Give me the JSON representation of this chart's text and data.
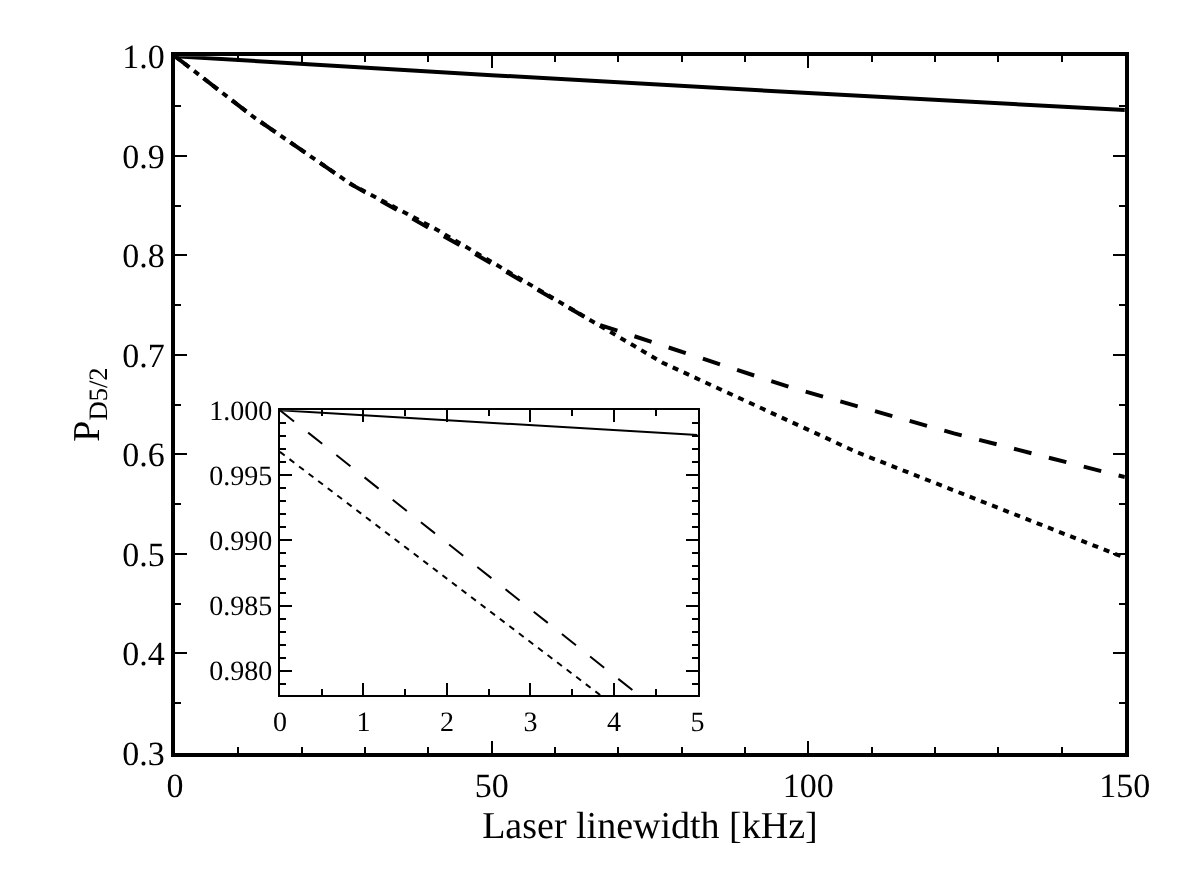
{
  "chart_data": [
    {
      "type": "line",
      "xlabel": "Laser linewidth [kHz]",
      "ylabel": "P$_{D5/2}$",
      "xlim": [
        0,
        150
      ],
      "xticks": [
        0,
        50,
        100,
        150
      ],
      "ylim": [
        0.3,
        1.0
      ],
      "yticks": [
        0.3,
        0.4,
        0.5,
        0.6,
        0.7,
        0.8,
        0.9,
        {
          "value": 1.0,
          "label": "1.0"
        }
      ],
      "marker": "none",
      "series": [
        {
          "color": "#000000",
          "line_style": "solid",
          "x": [
            0,
            50,
            100,
            150
          ],
          "values": [
            1.0,
            0.981,
            0.963,
            0.946
          ]
        },
        {
          "color": "#000000",
          "line_style": "dashed",
          "x": [
            0,
            12.6,
            27.9,
            45,
            66.6,
            97.3,
            123,
            150
          ],
          "values": [
            1.0,
            0.938,
            0.871,
            0.81,
            0.731,
            0.667,
            0.621,
            0.577
          ]
        },
        {
          "color": "#000000",
          "line_style": "dotted",
          "x": [
            0,
            12.6,
            27.9,
            41,
            77,
            107.7,
            150
          ],
          "values": [
            1.0,
            0.938,
            0.871,
            0.827,
            0.692,
            0.602,
            0.496
          ]
        }
      ]
    },
    {
      "type": "line",
      "xlim": [
        0,
        5
      ],
      "xticks": [
        0,
        1,
        2,
        3,
        4,
        5
      ],
      "ylim": [
        0.9781,
        1.0
      ],
      "yticks": [
        {
          "value": 0.98,
          "label": "0.980"
        },
        {
          "value": 0.985,
          "label": "0.985"
        },
        {
          "value": 0.99,
          "label": "0.990"
        },
        {
          "value": 0.995,
          "label": "0.995"
        },
        {
          "value": 1.0,
          "label": "1.000"
        }
      ],
      "marker": "none",
      "series": [
        {
          "color": "#000000",
          "line_style": "solid",
          "x": [
            0,
            5
          ],
          "values": [
            1.0,
            0.9981
          ]
        },
        {
          "color": "#000000",
          "line_style": "dashed",
          "x": [
            0,
            4.3
          ],
          "values": [
            1.0,
            0.9781
          ]
        },
        {
          "color": "#000000",
          "line_style": "dotted",
          "x": [
            0,
            3.84
          ],
          "values": [
            0.9968,
            0.9781
          ]
        }
      ]
    }
  ]
}
